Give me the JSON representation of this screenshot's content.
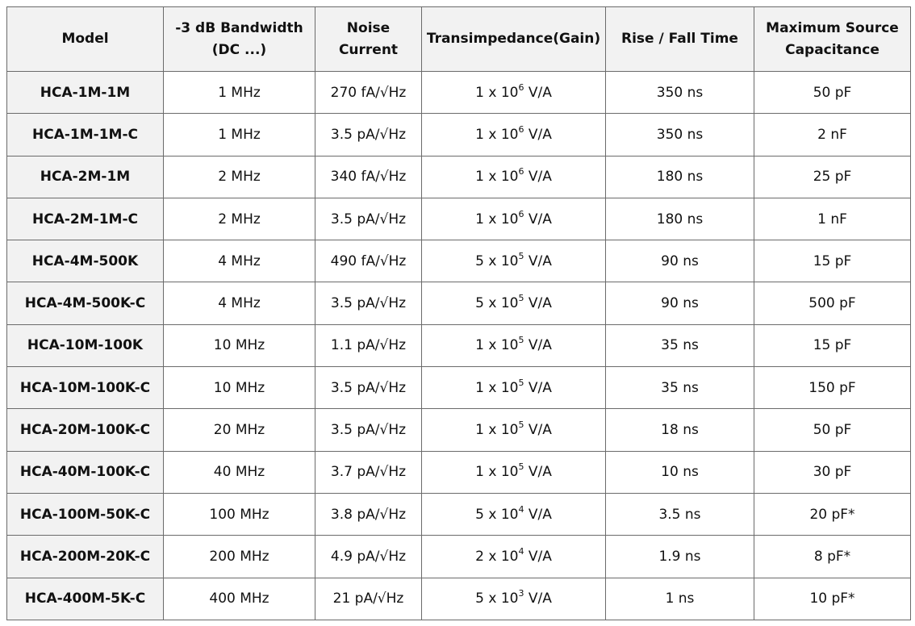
{
  "headers": [
    "Model",
    "-3 dB Bandwidth (DC ...)",
    "Noise Current",
    "Transimpedance(Gain)",
    "Rise / Fall Time",
    "Maximum Source Capacitance"
  ],
  "rows": [
    {
      "model": "HCA-1M-1M",
      "bandwidth": "1 MHz",
      "noise": "270 fA/√Hz",
      "gain_base": "1 x 10",
      "gain_exp": "6",
      "gain_unit": " V/A",
      "rise": "350 ns",
      "cap": "50 pF"
    },
    {
      "model": "HCA-1M-1M-C",
      "bandwidth": "1 MHz",
      "noise": "3.5 pA/√Hz",
      "gain_base": "1 x 10",
      "gain_exp": "6",
      "gain_unit": " V/A",
      "rise": "350 ns",
      "cap": "2 nF"
    },
    {
      "model": "HCA-2M-1M",
      "bandwidth": "2 MHz",
      "noise": "340 fA/√Hz",
      "gain_base": "1 x 10",
      "gain_exp": "6",
      "gain_unit": " V/A",
      "rise": "180 ns",
      "cap": "25 pF"
    },
    {
      "model": "HCA-2M-1M-C",
      "bandwidth": "2 MHz",
      "noise": "3.5 pA/√Hz",
      "gain_base": "1 x 10",
      "gain_exp": "6",
      "gain_unit": " V/A",
      "rise": "180 ns",
      "cap": "1 nF"
    },
    {
      "model": "HCA-4M-500K",
      "bandwidth": "4 MHz",
      "noise": "490 fA/√Hz",
      "gain_base": "5 x 10",
      "gain_exp": "5",
      "gain_unit": " V/A",
      "rise": "90 ns",
      "cap": "15 pF"
    },
    {
      "model": "HCA-4M-500K-C",
      "bandwidth": "4 MHz",
      "noise": "3.5 pA/√Hz",
      "gain_base": "5 x 10",
      "gain_exp": "5",
      "gain_unit": " V/A",
      "rise": "90 ns",
      "cap": "500 pF"
    },
    {
      "model": "HCA-10M-100K",
      "bandwidth": "10 MHz",
      "noise": "1.1 pA/√Hz",
      "gain_base": "1 x 10",
      "gain_exp": "5",
      "gain_unit": " V/A",
      "rise": "35 ns",
      "cap": "15 pF"
    },
    {
      "model": "HCA-10M-100K-C",
      "bandwidth": "10 MHz",
      "noise": "3.5 pA/√Hz",
      "gain_base": "1 x 10",
      "gain_exp": "5",
      "gain_unit": " V/A",
      "rise": "35 ns",
      "cap": "150 pF"
    },
    {
      "model": "HCA-20M-100K-C",
      "bandwidth": "20 MHz",
      "noise": "3.5 pA/√Hz",
      "gain_base": "1 x 10",
      "gain_exp": "5",
      "gain_unit": " V/A",
      "rise": "18 ns",
      "cap": "50 pF"
    },
    {
      "model": "HCA-40M-100K-C",
      "bandwidth": "40 MHz",
      "noise": "3.7 pA/√Hz",
      "gain_base": "1 x 10",
      "gain_exp": "5",
      "gain_unit": " V/A",
      "rise": "10 ns",
      "cap": "30 pF"
    },
    {
      "model": "HCA-100M-50K-C",
      "bandwidth": "100 MHz",
      "noise": "3.8 pA/√Hz",
      "gain_base": "5 x 10",
      "gain_exp": "4",
      "gain_unit": " V/A",
      "rise": "3.5 ns",
      "cap": "20 pF*"
    },
    {
      "model": "HCA-200M-20K-C",
      "bandwidth": "200 MHz",
      "noise": "4.9 pA/√Hz",
      "gain_base": "2 x 10",
      "gain_exp": "4",
      "gain_unit": " V/A",
      "rise": "1.9 ns",
      "cap": "8 pF*"
    },
    {
      "model": "HCA-400M-5K-C",
      "bandwidth": "400 MHz",
      "noise": "21 pA/√Hz",
      "gain_base": "5 x 10",
      "gain_exp": "3",
      "gain_unit": " V/A",
      "rise": "1 ns",
      "cap": "10 pF*"
    }
  ]
}
